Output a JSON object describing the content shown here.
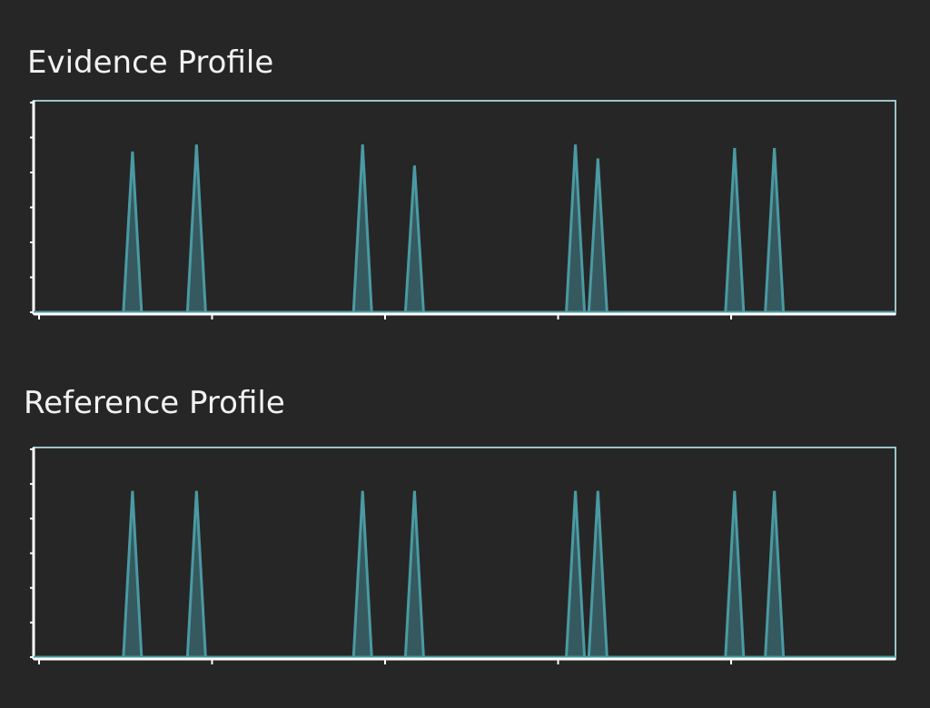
{
  "chart_data": [
    {
      "type": "peak",
      "title": "Evidence Profile",
      "color": "#4a9aa3",
      "x": [
        5.4,
        9.1,
        18.7,
        21.7,
        31.0,
        32.3,
        40.2,
        42.5
      ],
      "values": [
        4.6,
        4.8,
        4.8,
        4.2,
        4.8,
        4.4,
        4.7,
        4.7
      ],
      "xlim": [
        0,
        49.5
      ],
      "xticks": [
        0,
        10,
        20,
        30,
        40
      ],
      "ylim": [
        0,
        6
      ],
      "yticks": [
        0,
        1,
        2,
        3,
        4,
        5,
        6
      ]
    },
    {
      "type": "peak",
      "title": "Reference Profile",
      "color": "#4a9aa3",
      "x": [
        5.4,
        9.1,
        18.7,
        21.7,
        31.0,
        32.3,
        40.2,
        42.5
      ],
      "values": [
        4.8,
        4.8,
        4.8,
        4.8,
        4.8,
        4.8,
        4.8,
        4.8
      ],
      "xlim": [
        0,
        49.5
      ],
      "xticks": [
        0,
        10,
        20,
        30,
        40
      ],
      "ylim": [
        0,
        6
      ],
      "yticks": [
        0,
        1,
        2,
        3,
        4,
        5,
        6
      ]
    }
  ]
}
